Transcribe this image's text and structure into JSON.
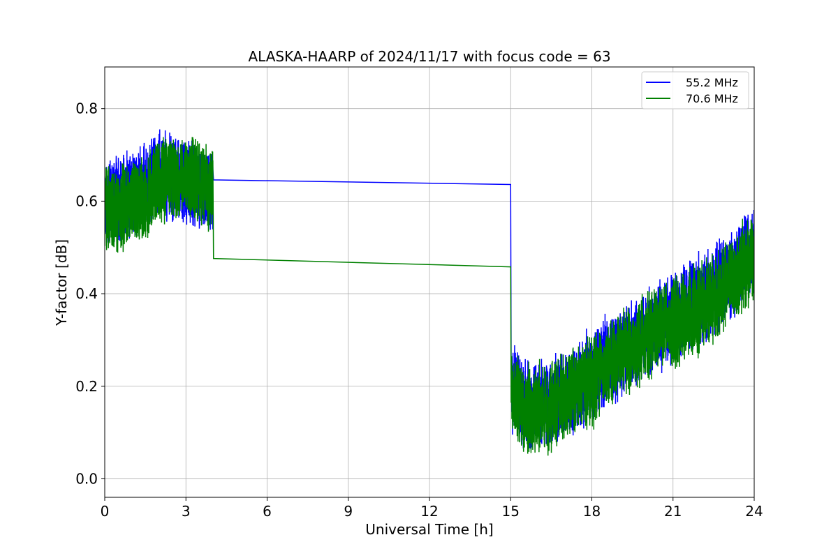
{
  "chart_data": {
    "type": "line",
    "title": "ALASKA-HAARP of 2024/11/17 with focus code = 63",
    "xlabel": "Universal Time [h]",
    "ylabel": "Y-factor [dB]",
    "xlim": [
      0,
      24
    ],
    "ylim": [
      -0.04,
      0.89
    ],
    "xticks": [
      0,
      3,
      6,
      9,
      12,
      15,
      18,
      21,
      24
    ],
    "xtick_labels": [
      "0",
      "3",
      "6",
      "9",
      "12",
      "15",
      "18",
      "21",
      "24"
    ],
    "yticks": [
      0.0,
      0.2,
      0.4,
      0.6,
      0.8
    ],
    "ytick_labels": [
      "0.0",
      "0.2",
      "0.4",
      "0.6",
      "0.8"
    ],
    "grid": true,
    "legend_position": "upper right",
    "series": [
      {
        "name": "55.2 MHz",
        "color": "#0000ff",
        "noisy": true,
        "points": [
          [
            0,
            0.6
          ],
          [
            0.5,
            0.6
          ],
          [
            1,
            0.62
          ],
          [
            1.5,
            0.63
          ],
          [
            2,
            0.66
          ],
          [
            2.5,
            0.65
          ],
          [
            3,
            0.64
          ],
          [
            3.5,
            0.63
          ],
          [
            4,
            0.62
          ],
          [
            4.02,
            0.646
          ],
          [
            15,
            0.636
          ],
          [
            15.02,
            0.2
          ],
          [
            15.5,
            0.16
          ],
          [
            16,
            0.16
          ],
          [
            16.5,
            0.17
          ],
          [
            17,
            0.19
          ],
          [
            17.5,
            0.2
          ],
          [
            18,
            0.23
          ],
          [
            18.5,
            0.25
          ],
          [
            19,
            0.27
          ],
          [
            19.5,
            0.29
          ],
          [
            20,
            0.31
          ],
          [
            20.5,
            0.33
          ],
          [
            21,
            0.35
          ],
          [
            21.5,
            0.37
          ],
          [
            22,
            0.39
          ],
          [
            22.5,
            0.41
          ],
          [
            23,
            0.43
          ],
          [
            23.5,
            0.46
          ],
          [
            24,
            0.5
          ]
        ]
      },
      {
        "name": "70.6 MHz",
        "color": "#008000",
        "noisy": true,
        "points": [
          [
            0,
            0.58
          ],
          [
            0.5,
            0.58
          ],
          [
            1,
            0.6
          ],
          [
            1.5,
            0.61
          ],
          [
            2,
            0.64
          ],
          [
            2.5,
            0.65
          ],
          [
            3,
            0.65
          ],
          [
            3.5,
            0.64
          ],
          [
            4,
            0.62
          ],
          [
            4.02,
            0.476
          ],
          [
            15,
            0.458
          ],
          [
            15.02,
            0.18
          ],
          [
            15.5,
            0.15
          ],
          [
            16,
            0.15
          ],
          [
            16.5,
            0.16
          ],
          [
            17,
            0.18
          ],
          [
            17.5,
            0.19
          ],
          [
            18,
            0.21
          ],
          [
            18.5,
            0.24
          ],
          [
            19,
            0.26
          ],
          [
            19.5,
            0.28
          ],
          [
            20,
            0.3
          ],
          [
            20.5,
            0.32
          ],
          [
            21,
            0.34
          ],
          [
            21.5,
            0.35
          ],
          [
            22,
            0.37
          ],
          [
            22.5,
            0.39
          ],
          [
            23,
            0.42
          ],
          [
            23.5,
            0.45
          ],
          [
            24,
            0.48
          ]
        ]
      }
    ]
  }
}
